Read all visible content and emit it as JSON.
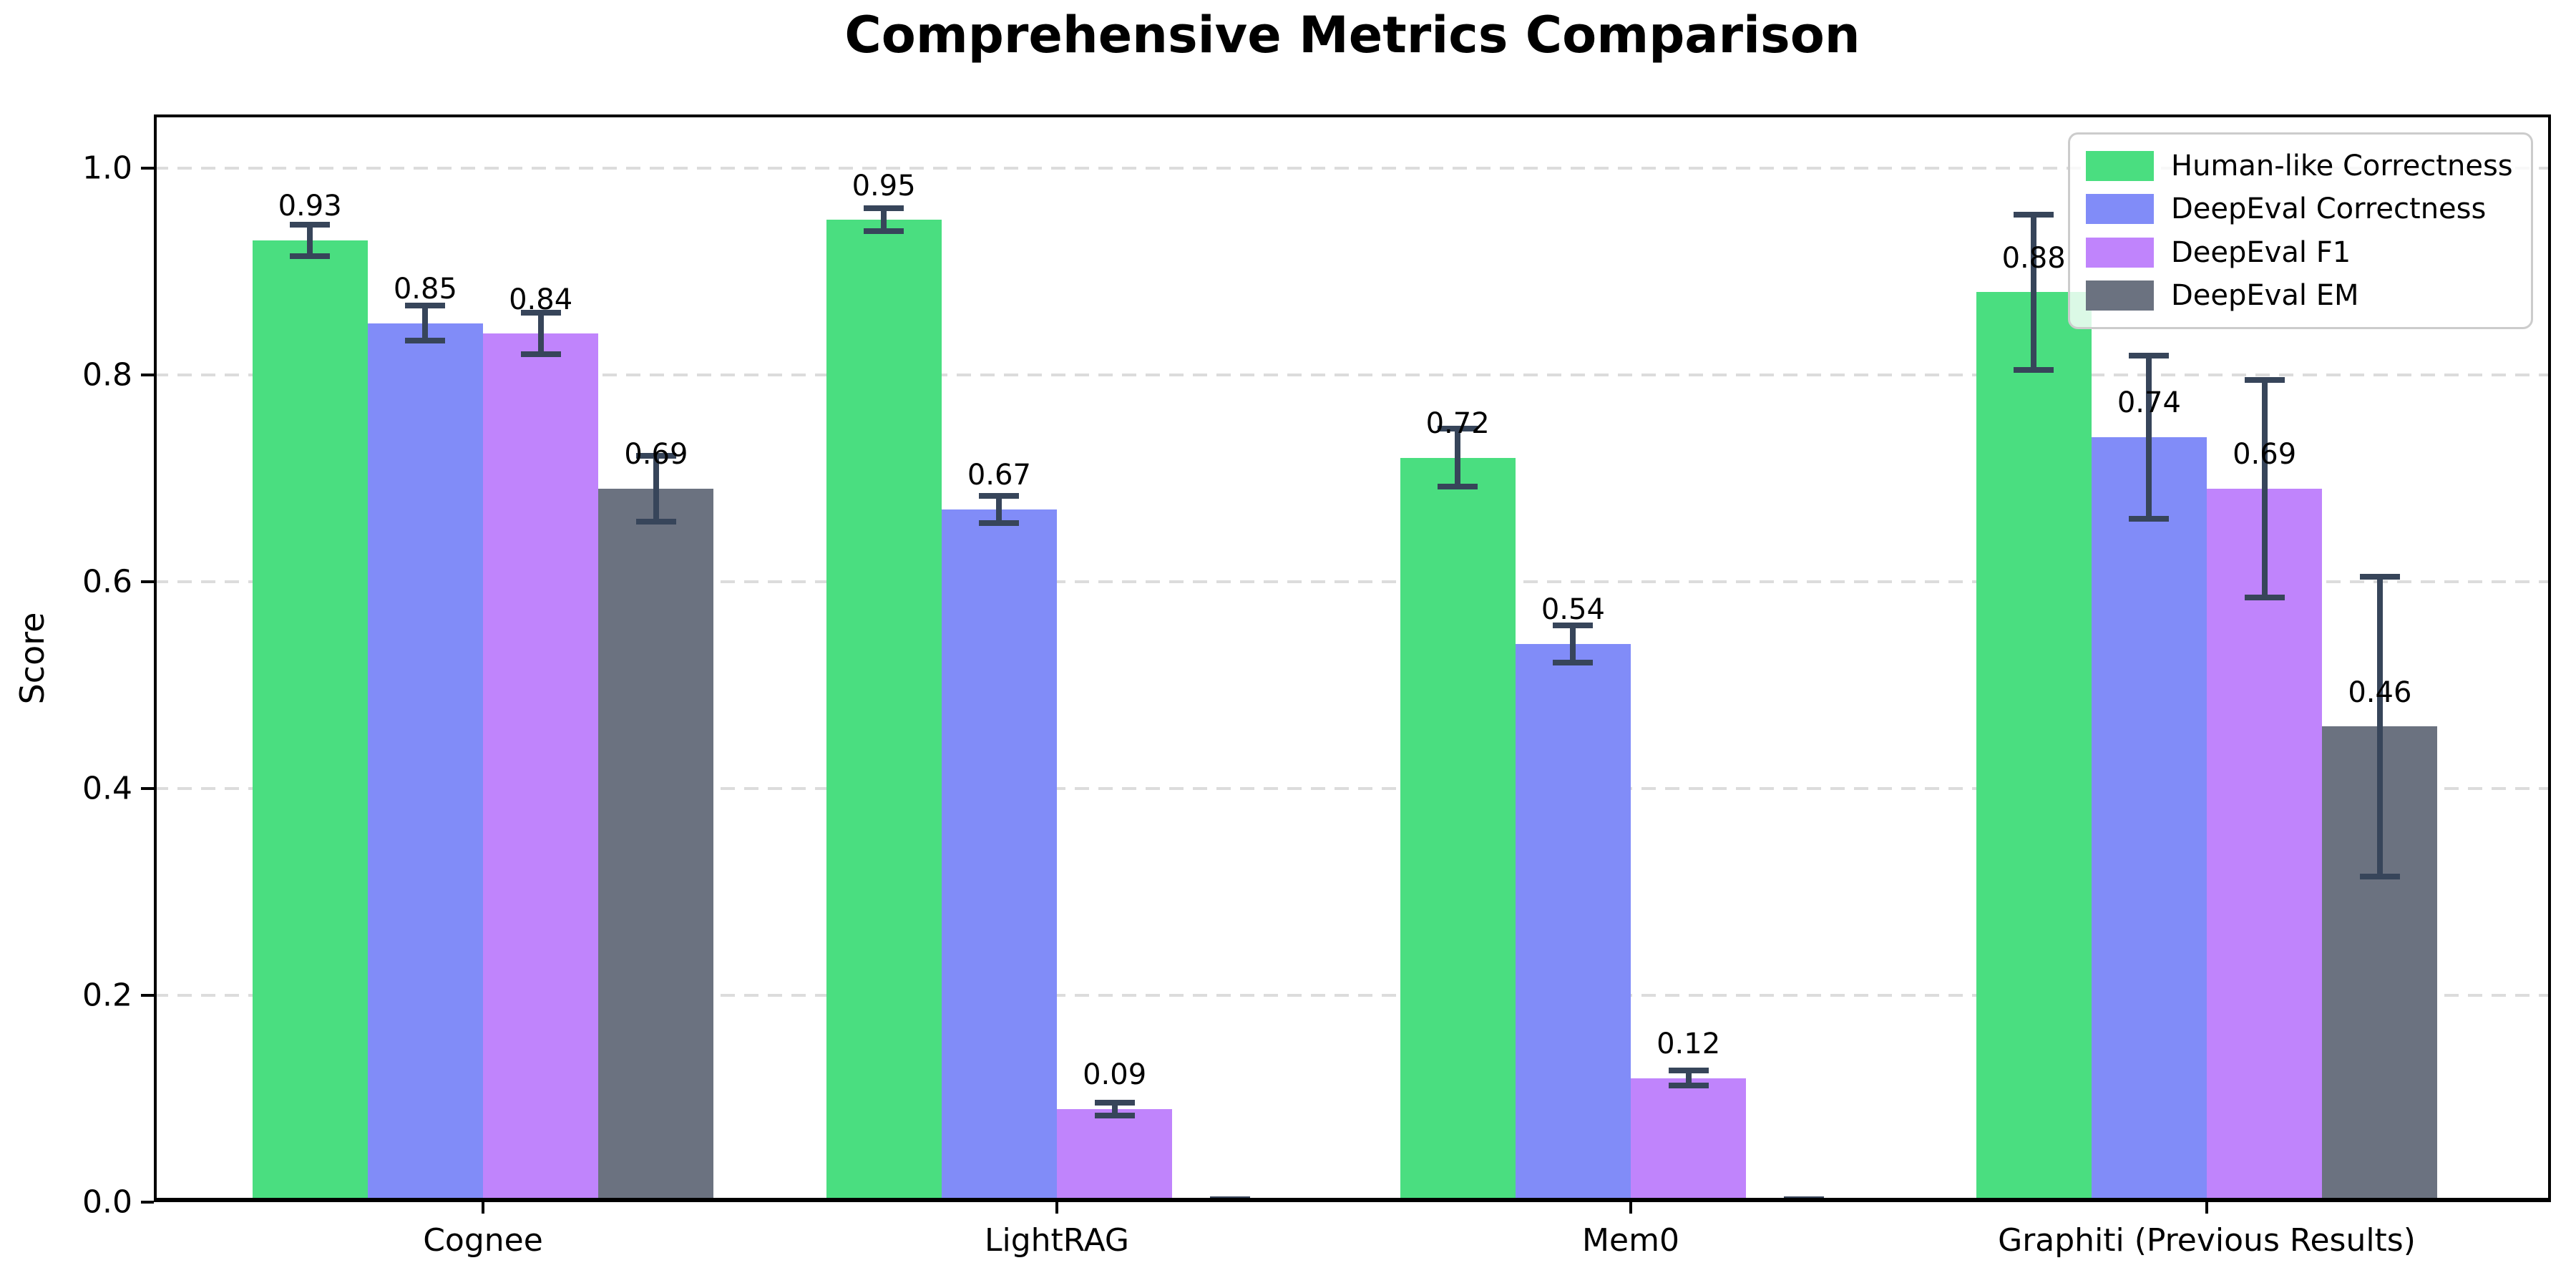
{
  "title": "Comprehensive Metrics Comparison",
  "axes": {
    "ylabel": "Score",
    "ytick_labels": [
      "0.0",
      "0.2",
      "0.4",
      "0.6",
      "0.8",
      "1.0"
    ]
  },
  "legend": {
    "entries": [
      "Human-like Correctness",
      "DeepEval Correctness",
      "DeepEval F1",
      "DeepEval EM"
    ],
    "position": "upper right"
  },
  "colors": {
    "human_like_correctness": "#4ade80",
    "deepeval_correctness": "#818cf8",
    "deepeval_f1": "#c084fc",
    "deepeval_em": "#6b7280",
    "error_bar": "#37455a",
    "gridline": "#dcdcdc",
    "spine": "#000000",
    "legend_border": "#cccccc"
  },
  "chart_data": {
    "type": "bar",
    "title": "Comprehensive Metrics Comparison",
    "xlabel": "",
    "ylabel": "Score",
    "categories": [
      "Cognee",
      "LightRAG",
      "Mem0",
      "Graphiti (Previous Results)"
    ],
    "series": [
      {
        "name": "Human-like Correctness",
        "color": "#4ade80",
        "values": [
          0.93,
          0.95,
          0.72,
          0.88
        ],
        "errors": [
          0.015,
          0.011,
          0.028,
          0.075
        ]
      },
      {
        "name": "DeepEval Correctness",
        "color": "#818cf8",
        "values": [
          0.85,
          0.67,
          0.54,
          0.74
        ],
        "errors": [
          0.017,
          0.013,
          0.018,
          0.079
        ]
      },
      {
        "name": "DeepEval F1",
        "color": "#c084fc",
        "values": [
          0.84,
          0.09,
          0.12,
          0.69
        ],
        "errors": [
          0.02,
          0.006,
          0.007,
          0.105
        ]
      },
      {
        "name": "DeepEval EM",
        "color": "#6b7280",
        "values": [
          0.69,
          0.0,
          0.0,
          0.46
        ],
        "errors": [
          0.032,
          0.003,
          0.003,
          0.145
        ]
      }
    ],
    "bar_value_labels": {
      "Cognee": [
        "0.93",
        "0.85",
        "0.84",
        "0.69"
      ],
      "LightRAG": [
        "0.95",
        "0.67",
        "0.09",
        null
      ],
      "Mem0": [
        "0.72",
        "0.54",
        "0.12",
        null
      ],
      "Graphiti (Previous Results)": [
        "0.88",
        "0.74",
        "0.69",
        "0.46"
      ]
    },
    "ylim": [
      0,
      1.052
    ],
    "yticks": [
      0.0,
      0.2,
      0.4,
      0.6,
      0.8,
      1.0
    ],
    "grid": {
      "axis": "y",
      "style": "dashed",
      "color": "#dcdcdc"
    },
    "legend_position": "upper right",
    "error_bar_color": "#37455a",
    "zero_bars_unlabeled": true
  }
}
